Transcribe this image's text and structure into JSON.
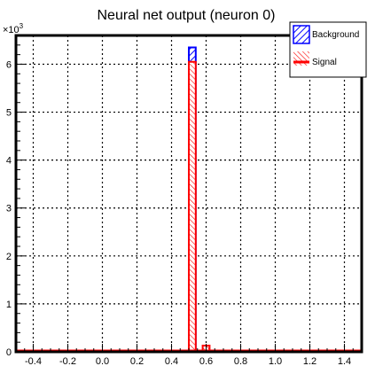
{
  "chart_data": {
    "type": "bar",
    "title": "Neural net output (neuron 0)",
    "xlabel": "",
    "ylabel": "",
    "y_multiplier_label": "×10",
    "y_multiplier_exponent": "3",
    "xlim": [
      -0.5,
      1.5
    ],
    "ylim": [
      0,
      6.6
    ],
    "xticks": [
      -0.4,
      -0.2,
      0.0,
      0.2,
      0.4,
      0.6,
      0.8,
      1.0,
      1.2,
      1.4
    ],
    "xtick_labels": [
      "-0.4",
      "-0.2",
      "0.0",
      "0.2",
      "0.4",
      "0.6",
      "0.8",
      "1.0",
      "1.2",
      "1.4"
    ],
    "yticks": [
      0,
      1,
      2,
      3,
      4,
      5,
      6
    ],
    "ytick_labels": [
      "0",
      "1",
      "2",
      "3",
      "4",
      "5",
      "6"
    ],
    "grid": true,
    "legend": "top-right",
    "bin_width": 0.04,
    "series": [
      {
        "name": "Background",
        "color": "#0000ff",
        "fill": "hatched-blue",
        "bins": [
          {
            "x0": 0.5,
            "x1": 0.54,
            "value": 6.35
          }
        ]
      },
      {
        "name": "Signal",
        "color": "#ff0000",
        "fill": "hatched-red",
        "bins": [
          {
            "x0": 0.5,
            "x1": 0.54,
            "value": 6.05
          },
          {
            "x0": 0.54,
            "x1": 0.58,
            "value": 0.02
          },
          {
            "x0": 0.58,
            "x1": 0.62,
            "value": 0.13
          }
        ]
      }
    ]
  }
}
